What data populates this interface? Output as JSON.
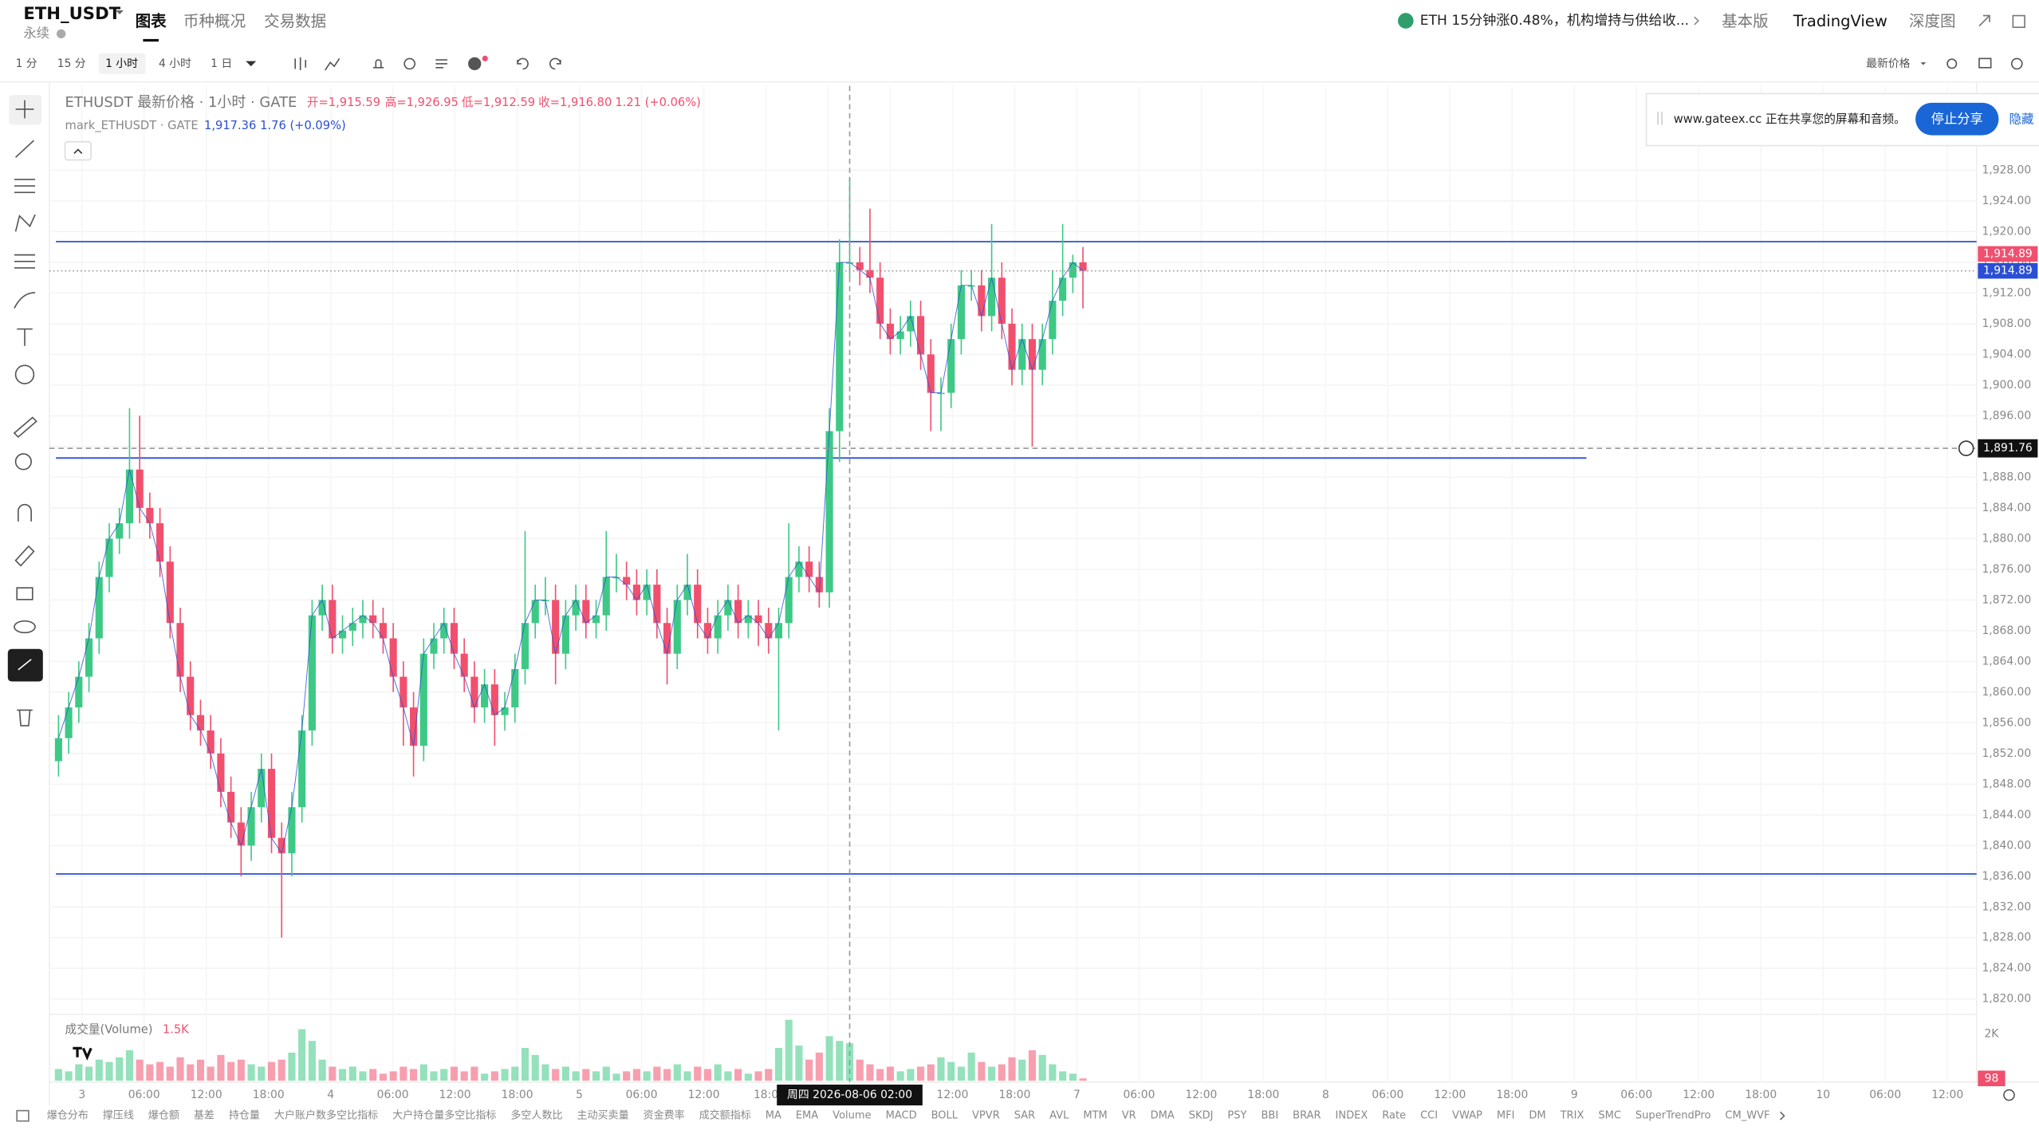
{
  "header": {
    "symbol": "ETH_USDT",
    "subtitle": "永续",
    "tabs": [
      "图表",
      "币种概况",
      "交易数据"
    ],
    "news": "ETH 15分钟涨0.48%，机构增持与供给收...",
    "links": [
      "基本版",
      "TradingView",
      "深度图"
    ]
  },
  "toolbar": {
    "intervals": [
      "1 分",
      "15 分",
      "1 小时",
      "4 小时",
      "1 日"
    ],
    "price_source": "最新价格"
  },
  "share_banner": {
    "text": "www.gateex.cc 正在共享您的屏幕和音频。",
    "stop": "停止分享",
    "hide": "隐藏"
  },
  "chart_data": {
    "type": "candlestick",
    "title": "ETHUSDT 最新价格 · 1小时 · GATE",
    "ohlc_labels": [
      "开=1,915.59",
      "高=1,926.95",
      "低=1,912.59",
      "收=1,916.80",
      "1.21 (+0.06%)"
    ],
    "mark_title": "mark_ETHUSDT · GATE",
    "mark_labels": [
      "1,917.36",
      "1.76 (+0.09%)"
    ],
    "up_color": "#3dc985",
    "down_color": "#f0506e",
    "line_color": "#2a4fd6",
    "ylim": [
      1818,
      1939
    ],
    "yticks": [
      {
        "value": 1820,
        "label": "1,820.00"
      },
      {
        "value": 1824,
        "label": "1,824.00"
      },
      {
        "value": 1828,
        "label": "1,828.00"
      },
      {
        "value": 1832,
        "label": "1,832.00"
      },
      {
        "value": 1836,
        "label": "1,836.00"
      },
      {
        "value": 1840,
        "label": "1,840.00"
      },
      {
        "value": 1844,
        "label": "1,844.00"
      },
      {
        "value": 1848,
        "label": "1,848.00"
      },
      {
        "value": 1852,
        "label": "1,852.00"
      },
      {
        "value": 1856,
        "label": "1,856.00"
      },
      {
        "value": 1860,
        "label": "1,860.00"
      },
      {
        "value": 1864,
        "label": "1,864.00"
      },
      {
        "value": 1868,
        "label": "1,868.00"
      },
      {
        "value": 1872,
        "label": "1,872.00"
      },
      {
        "value": 1876,
        "label": "1,876.00"
      },
      {
        "value": 1880,
        "label": "1,880.00"
      },
      {
        "value": 1884,
        "label": "1,884.00"
      },
      {
        "value": 1888,
        "label": "1,888.00"
      },
      {
        "value": 1892,
        "label": "1,892.00"
      },
      {
        "value": 1896,
        "label": "1,896.00"
      },
      {
        "value": 1900,
        "label": "1,900.00"
      },
      {
        "value": 1904,
        "label": "1,904.00"
      },
      {
        "value": 1908,
        "label": "1,908.00"
      },
      {
        "value": 1912,
        "label": "1,912.00"
      },
      {
        "value": 1916,
        "label": "1,916.00"
      },
      {
        "value": 1920,
        "label": "1,920.00"
      },
      {
        "value": 1924,
        "label": "1,924.00"
      },
      {
        "value": 1928,
        "label": "1,928.00"
      }
    ],
    "grid": true,
    "x_axis_labels": [
      "3",
      "06:00",
      "12:00",
      "18:00",
      "4",
      "06:00",
      "12:00",
      "18:00",
      "5",
      "06:00",
      "12:00",
      "18:0",
      null,
      null,
      "12:00",
      "18:00",
      "7",
      "06:00",
      "12:00",
      "18:00",
      "8",
      "06:00",
      "12:00",
      "18:00",
      "9",
      "06:00",
      "12:00",
      "18:00",
      "10",
      "06:00",
      "12:00"
    ],
    "candles": [
      [
        1851,
        1857,
        1849,
        1854
      ],
      [
        1854,
        1860,
        1852,
        1858
      ],
      [
        1858,
        1864,
        1856,
        1862
      ],
      [
        1862,
        1869,
        1860,
        1867
      ],
      [
        1867,
        1877,
        1865,
        1875
      ],
      [
        1875,
        1882,
        1873,
        1880
      ],
      [
        1880,
        1884,
        1878,
        1882
      ],
      [
        1882,
        1897,
        1880,
        1889
      ],
      [
        1889,
        1896,
        1882,
        1884
      ],
      [
        1884,
        1886,
        1880,
        1882
      ],
      [
        1882,
        1884,
        1875,
        1877
      ],
      [
        1877,
        1879,
        1867,
        1869
      ],
      [
        1869,
        1871,
        1860,
        1862
      ],
      [
        1862,
        1864,
        1855,
        1857
      ],
      [
        1857,
        1859,
        1853,
        1855
      ],
      [
        1855,
        1857,
        1850,
        1852
      ],
      [
        1852,
        1854,
        1845,
        1847
      ],
      [
        1847,
        1849,
        1841,
        1843
      ],
      [
        1843,
        1845,
        1836,
        1840
      ],
      [
        1840,
        1847,
        1838,
        1845
      ],
      [
        1845,
        1852,
        1843,
        1850
      ],
      [
        1850,
        1852,
        1839,
        1841
      ],
      [
        1841,
        1843,
        1828,
        1839
      ],
      [
        1839,
        1847,
        1836,
        1845
      ],
      [
        1845,
        1857,
        1843,
        1855
      ],
      [
        1855,
        1872,
        1853,
        1870
      ],
      [
        1870,
        1874,
        1868,
        1872
      ],
      [
        1872,
        1874,
        1865,
        1867
      ],
      [
        1867,
        1870,
        1865,
        1868
      ],
      [
        1868,
        1871,
        1866,
        1869
      ],
      [
        1869,
        1872,
        1867,
        1870
      ],
      [
        1870,
        1872,
        1867,
        1869
      ],
      [
        1869,
        1871,
        1865,
        1867
      ],
      [
        1867,
        1869,
        1860,
        1862
      ],
      [
        1862,
        1864,
        1853,
        1858
      ],
      [
        1858,
        1860,
        1849,
        1853
      ],
      [
        1853,
        1867,
        1851,
        1865
      ],
      [
        1865,
        1869,
        1863,
        1867
      ],
      [
        1867,
        1871,
        1865,
        1869
      ],
      [
        1869,
        1871,
        1863,
        1865
      ],
      [
        1865,
        1867,
        1860,
        1862
      ],
      [
        1862,
        1864,
        1856,
        1858
      ],
      [
        1858,
        1863,
        1856,
        1861
      ],
      [
        1861,
        1863,
        1853,
        1857
      ],
      [
        1857,
        1860,
        1855,
        1858
      ],
      [
        1858,
        1865,
        1856,
        1863
      ],
      [
        1863,
        1881,
        1861,
        1869
      ],
      [
        1869,
        1874,
        1867,
        1872
      ],
      [
        1872,
        1875,
        1870,
        1872
      ],
      [
        1872,
        1874,
        1861,
        1865
      ],
      [
        1865,
        1872,
        1863,
        1870
      ],
      [
        1870,
        1874,
        1868,
        1872
      ],
      [
        1872,
        1874,
        1867,
        1869
      ],
      [
        1869,
        1872,
        1867,
        1870
      ],
      [
        1870,
        1881,
        1868,
        1875
      ],
      [
        1875,
        1878,
        1873,
        1875
      ],
      [
        1875,
        1877,
        1872,
        1874
      ],
      [
        1874,
        1876,
        1870,
        1872
      ],
      [
        1872,
        1876,
        1870,
        1874
      ],
      [
        1874,
        1876,
        1867,
        1869
      ],
      [
        1869,
        1871,
        1861,
        1865
      ],
      [
        1865,
        1874,
        1863,
        1872
      ],
      [
        1872,
        1878,
        1870,
        1874
      ],
      [
        1874,
        1876,
        1867,
        1869
      ],
      [
        1869,
        1871,
        1865,
        1867
      ],
      [
        1867,
        1872,
        1865,
        1870
      ],
      [
        1870,
        1874,
        1868,
        1872
      ],
      [
        1872,
        1874,
        1867,
        1869
      ],
      [
        1869,
        1872,
        1867,
        1870
      ],
      [
        1870,
        1872,
        1866,
        1869
      ],
      [
        1869,
        1871,
        1865,
        1867
      ],
      [
        1867,
        1871,
        1855,
        1869
      ],
      [
        1869,
        1882,
        1867,
        1875
      ],
      [
        1875,
        1879,
        1873,
        1877
      ],
      [
        1877,
        1879,
        1873,
        1875
      ],
      [
        1875,
        1877,
        1871,
        1873
      ],
      [
        1873,
        1897,
        1871,
        1894
      ],
      [
        1894,
        1919,
        1890,
        1916
      ],
      [
        1916,
        1927,
        1914,
        1916
      ],
      [
        1916,
        1918,
        1913,
        1915
      ],
      [
        1915,
        1923,
        1912,
        1914
      ],
      [
        1914,
        1916,
        1906,
        1908
      ],
      [
        1908,
        1910,
        1904,
        1906
      ],
      [
        1906,
        1909,
        1904,
        1907
      ],
      [
        1907,
        1911,
        1905,
        1909
      ],
      [
        1909,
        1911,
        1902,
        1904
      ],
      [
        1904,
        1906,
        1894,
        1899
      ],
      [
        1899,
        1901,
        1894,
        1899
      ],
      [
        1899,
        1908,
        1897,
        1906
      ],
      [
        1906,
        1915,
        1904,
        1913
      ],
      [
        1913,
        1915,
        1911,
        1913
      ],
      [
        1913,
        1915,
        1907,
        1909
      ],
      [
        1909,
        1921,
        1907,
        1914
      ],
      [
        1914,
        1916,
        1906,
        1908
      ],
      [
        1908,
        1910,
        1900,
        1902
      ],
      [
        1902,
        1908,
        1900,
        1906
      ],
      [
        1906,
        1908,
        1892,
        1902
      ],
      [
        1902,
        1908,
        1900,
        1906
      ],
      [
        1906,
        1915,
        1904,
        1911
      ],
      [
        1911,
        1921,
        1909,
        1914
      ],
      [
        1914,
        1917,
        1912,
        1916
      ],
      [
        1916,
        1918,
        1910,
        1914.89
      ]
    ],
    "drawn_lines": [
      1918.7,
      1890.5,
      1836.3
    ],
    "last_price": {
      "value": 1914.89,
      "label": "1,914.89"
    },
    "mark_price_label": "1,914.89",
    "crosshair": {
      "value": 1891.76,
      "label": "1,891.76"
    },
    "crosshair_time": "周四 2026-08-06 02:00",
    "volume": {
      "title": "成交量(Volume)",
      "value_label": "1.5K",
      "ylim": [
        0,
        2830
      ],
      "yticks": [
        {
          "value": 2000,
          "label": "2K"
        }
      ],
      "current": 98,
      "values": [
        500,
        400,
        700,
        600,
        900,
        800,
        1000,
        1300,
        900,
        700,
        800,
        600,
        1000,
        700,
        900,
        600,
        1100,
        800,
        900,
        700,
        600,
        800,
        900,
        1200,
        2200,
        1700,
        900,
        600,
        500,
        600,
        400,
        500,
        300,
        400,
        600,
        500,
        700,
        400,
        500,
        600,
        400,
        600,
        300,
        400,
        500,
        600,
        1400,
        1100,
        700,
        500,
        600,
        400,
        500,
        400,
        600,
        300,
        400,
        500,
        400,
        600,
        500,
        700,
        400,
        600,
        500,
        700,
        400,
        500,
        300,
        400,
        500,
        1400,
        2600,
        1500,
        900,
        1200,
        1900,
        1700,
        1600,
        900,
        700,
        500,
        600,
        400,
        500,
        600,
        700,
        1000,
        800,
        600,
        1200,
        800,
        600,
        700,
        1000,
        900,
        1300,
        1100,
        700,
        400,
        300,
        98
      ]
    },
    "indicators": [
      "爆仓分布",
      "撑压线",
      "爆仓额",
      "基差",
      "持仓量",
      "大户账户数多空比指标",
      "大户持仓量多空比指标",
      "多空人数比",
      "主动买卖量",
      "资金费率",
      "成交额指标",
      "MA",
      "EMA",
      "Volume",
      "MACD",
      "BOLL",
      "VPVR",
      "SAR",
      "AVL",
      "MTM",
      "VR",
      "DMA",
      "SKDJ",
      "PSY",
      "BBI",
      "BRAR",
      "INDEX",
      "Rate",
      "CCI",
      "VWAP",
      "MFI",
      "DM",
      "TRIX",
      "SMC",
      "SuperTrendPro",
      "CM_WVF"
    ]
  }
}
